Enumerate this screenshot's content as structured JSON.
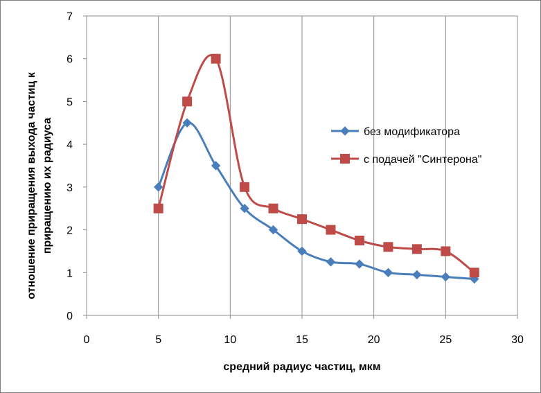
{
  "chart_data": {
    "type": "line",
    "title": "",
    "xlabel": "средний радиус частиц, мкм",
    "ylabel_lines": [
      "отношение  приращения выхода частиц к",
      "приращению их радиуса"
    ],
    "xlim": [
      0,
      30
    ],
    "ylim": [
      0,
      7
    ],
    "xticks": [
      "0",
      "5",
      "10",
      "15",
      "20",
      "25",
      "30"
    ],
    "yticks": [
      "0",
      "1",
      "2",
      "3",
      "4",
      "5",
      "6",
      "7"
    ],
    "grid": "vertical",
    "legend_position": "right",
    "smooth": true,
    "series": [
      {
        "name": "без модификатора",
        "color": "#4a7ebb",
        "marker": "diamond",
        "x": [
          5,
          7,
          9,
          11,
          13,
          15,
          17,
          19,
          21,
          23,
          25,
          27
        ],
        "y": [
          3.0,
          4.5,
          3.5,
          2.5,
          2.0,
          1.5,
          1.25,
          1.2,
          1.0,
          0.95,
          0.9,
          0.85
        ]
      },
      {
        "name": "с подачей \"Синтерона\"",
        "color": "#be4b48",
        "marker": "square",
        "x": [
          5,
          7,
          9,
          11,
          13,
          15,
          17,
          19,
          21,
          23,
          25,
          27
        ],
        "y": [
          2.5,
          5.0,
          6.0,
          3.0,
          2.5,
          2.25,
          2.0,
          1.75,
          1.6,
          1.55,
          1.5,
          1.0
        ]
      }
    ]
  }
}
